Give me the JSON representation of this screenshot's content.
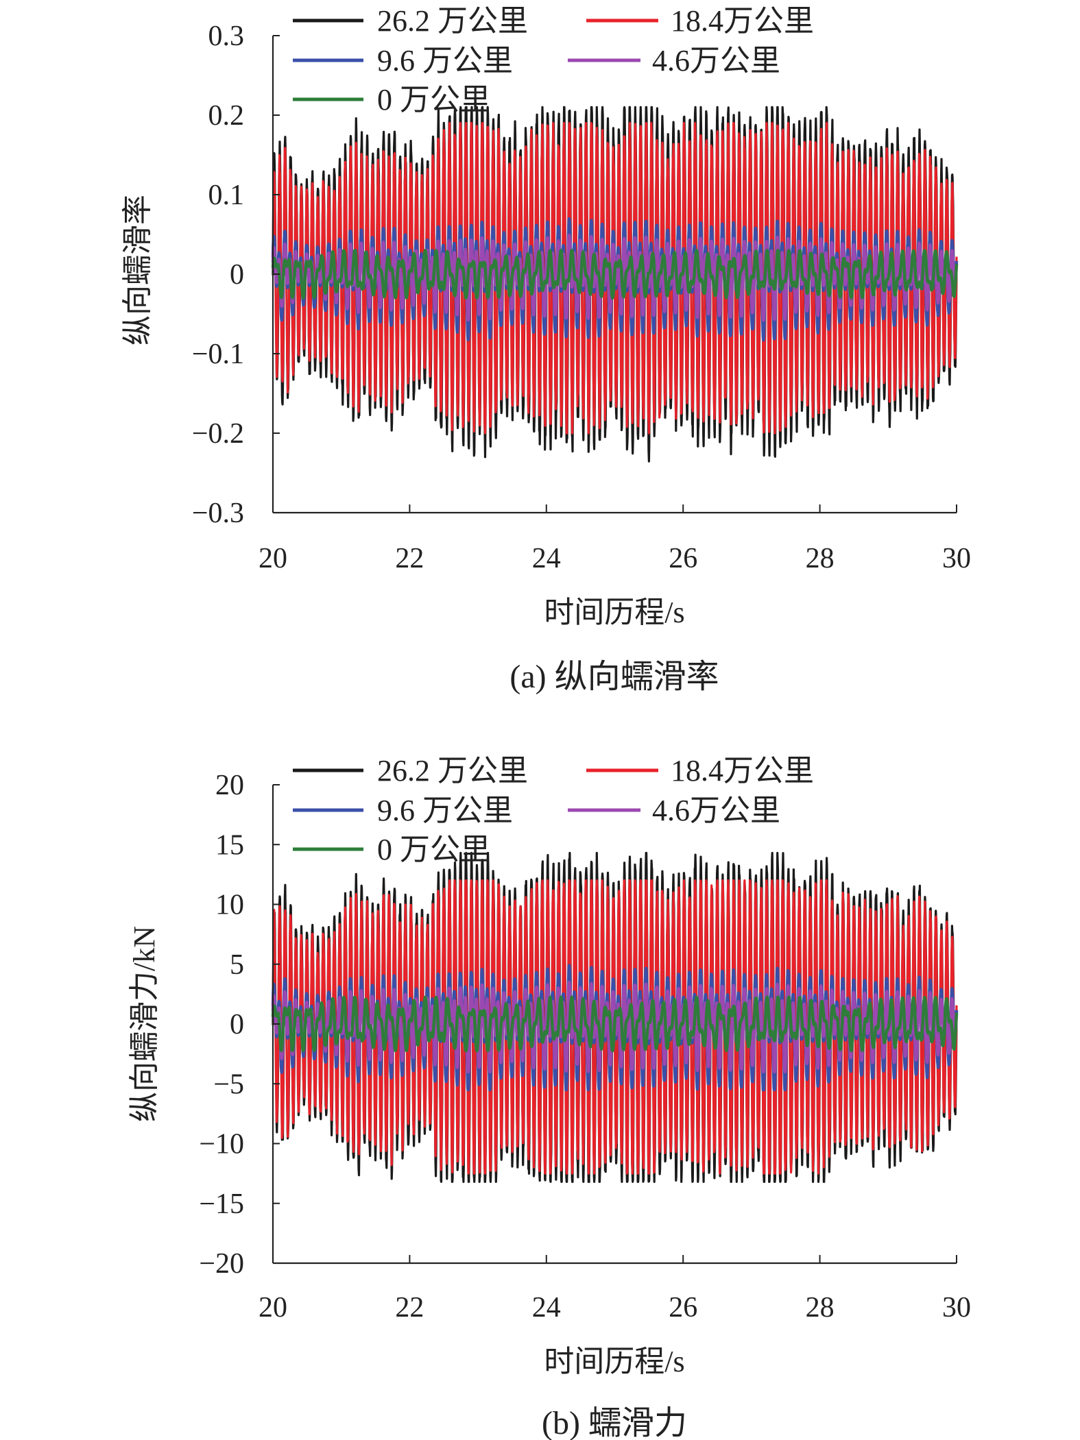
{
  "chart_data": [
    {
      "type": "line",
      "caption": "(a) 纵向蠕滑率",
      "xlabel": "时间历程/s",
      "ylabel": "纵向蠕滑率",
      "xlim": [
        20,
        30
      ],
      "ylim": [
        -0.3,
        0.3
      ],
      "xticks": [
        20,
        22,
        24,
        26,
        28,
        30
      ],
      "xtick_labels": [
        "20",
        "22",
        "24",
        "26",
        "28",
        "30"
      ],
      "yticks": [
        0.3,
        0.2,
        0.1,
        0,
        -0.1,
        -0.2,
        -0.3
      ],
      "ytick_labels": [
        "0.3",
        "0.2",
        "0.1",
        "0",
        "−0.1",
        "−0.2",
        "−0.3"
      ],
      "grid": false,
      "legend_position": "top",
      "series": [
        {
          "name": "26.2 万公里",
          "color": "#1a1a1a",
          "amplitude": 0.17,
          "max": 0.21,
          "min": -0.25,
          "frequency_hz": 12.5
        },
        {
          "name": "18.4万公里",
          "color": "#e8222a",
          "amplitude": 0.15,
          "max": 0.19,
          "min": -0.2,
          "frequency_hz": 12.5
        },
        {
          "name": "9.6 万公里",
          "color": "#3a4fa8",
          "amplitude": 0.05,
          "max": 0.08,
          "min": -0.09,
          "frequency_hz": 12.5
        },
        {
          "name": "4.6万公里",
          "color": "#9b48b0",
          "amplitude": 0.035,
          "max": 0.06,
          "min": -0.06,
          "frequency_hz": 12.5
        },
        {
          "name": "0 万公里",
          "color": "#2e7d3a",
          "amplitude": 0.02,
          "max": 0.045,
          "min": -0.04,
          "frequency_hz": 6
        }
      ]
    },
    {
      "type": "line",
      "caption": "(b) 蠕滑力",
      "xlabel": "时间历程/s",
      "ylabel": "纵向蠕滑力/kN",
      "xlim": [
        20,
        30
      ],
      "ylim": [
        -20,
        20
      ],
      "xticks": [
        20,
        22,
        24,
        26,
        28,
        30
      ],
      "xtick_labels": [
        "20",
        "22",
        "24",
        "26",
        "28",
        "30"
      ],
      "yticks": [
        20,
        15,
        10,
        5,
        0,
        -5,
        -10,
        -15,
        -20
      ],
      "ytick_labels": [
        "20",
        "15",
        "10",
        "5",
        "0",
        "−5",
        "−10",
        "−15",
        "−20"
      ],
      "grid": false,
      "legend_position": "top",
      "series": [
        {
          "name": "26.2 万公里",
          "color": "#1a1a1a",
          "amplitude": 11,
          "max": 14.3,
          "min": -13.2,
          "frequency_hz": 12.5
        },
        {
          "name": "18.4万公里",
          "color": "#e8222a",
          "amplitude": 10,
          "max": 12,
          "min": -12.5,
          "frequency_hz": 12.5
        },
        {
          "name": "9.6 万公里",
          "color": "#3a4fa8",
          "amplitude": 3.5,
          "max": 5.5,
          "min": -5.5,
          "frequency_hz": 12.5
        },
        {
          "name": "4.6万公里",
          "color": "#9b48b0",
          "amplitude": 2.5,
          "max": 4,
          "min": -4,
          "frequency_hz": 12.5
        },
        {
          "name": "0 万公里",
          "color": "#2e7d3a",
          "amplitude": 1.5,
          "max": 3,
          "min": -3,
          "frequency_hz": 6
        }
      ]
    }
  ]
}
